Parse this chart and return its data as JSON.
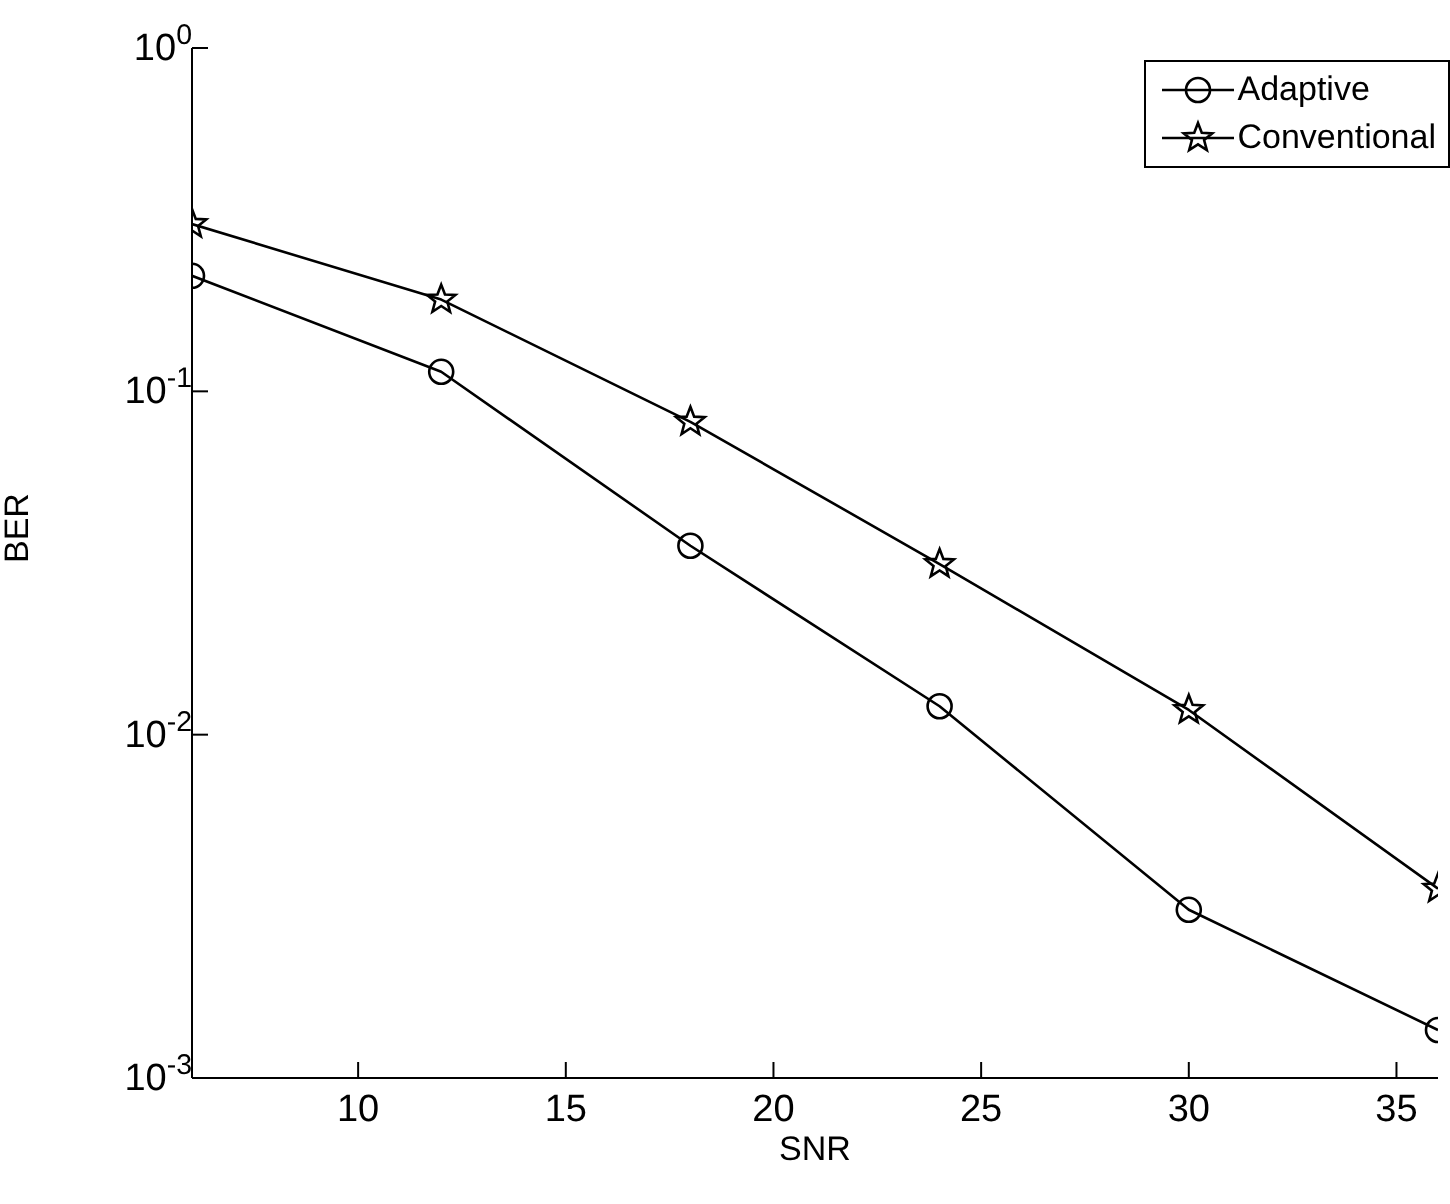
{
  "chart_data": {
    "type": "line",
    "xlabel": "SNR",
    "ylabel": "BER",
    "x": [
      6,
      12,
      18,
      24,
      30,
      36
    ],
    "log": "y",
    "xlim": [
      6,
      36
    ],
    "xticks": [
      10,
      15,
      20,
      25,
      30,
      35
    ],
    "ylim": [
      0.001,
      1
    ],
    "yticks": [
      {
        "value": 0.001,
        "label": "10$^{-3}$"
      },
      {
        "value": 0.01,
        "label": "10$^{-2}$"
      },
      {
        "value": 0.1,
        "label": "10$^{-1}$"
      },
      {
        "value": 1,
        "label": "10$^{0}$"
      }
    ],
    "grid": false,
    "legend": "top right",
    "line_style": "solid",
    "series": [
      {
        "name": "Adaptive",
        "color": "#000000",
        "marker": "circle",
        "values": [
          0.217,
          0.114,
          0.0355,
          0.0121,
          0.00309,
          0.00138
        ]
      },
      {
        "name": "Conventional",
        "color": "#000000",
        "marker": "star",
        "values": [
          0.307,
          0.185,
          0.0815,
          0.0314,
          0.0118,
          0.00356
        ]
      }
    ]
  }
}
